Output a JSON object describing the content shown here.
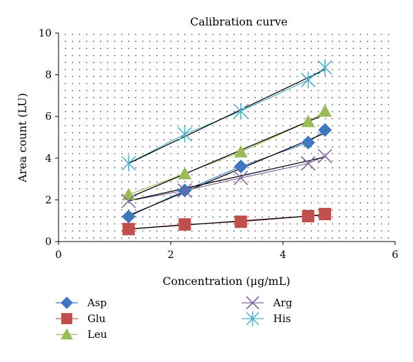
{
  "chart_data": {
    "type": "scatter",
    "title": "Calibration curve",
    "xlabel": "Concentration (μg/mL)",
    "ylabel": "Area count (LU)",
    "xlim": [
      0,
      6
    ],
    "ylim": [
      0,
      10
    ],
    "xticks": [
      0,
      2,
      4,
      6
    ],
    "yticks": [
      0,
      2,
      4,
      6,
      8,
      10
    ],
    "grid": true,
    "legend_position": "bottom",
    "series": [
      {
        "name": "Asp",
        "marker": "diamond",
        "color": "#3f78bf",
        "x": [
          1.25,
          2.25,
          3.25,
          4.45,
          4.75
        ],
        "y": [
          1.2,
          2.45,
          3.6,
          4.75,
          5.35
        ],
        "fit_x": [
          1.25,
          4.75
        ],
        "fit_y": [
          1.25,
          5.2
        ]
      },
      {
        "name": "Glu",
        "marker": "square",
        "color": "#c0504d",
        "x": [
          1.25,
          2.25,
          3.25,
          4.45,
          4.75
        ],
        "y": [
          0.6,
          0.82,
          0.95,
          1.22,
          1.32
        ],
        "fit_x": [
          1.25,
          4.75
        ],
        "fit_y": [
          0.6,
          1.28
        ]
      },
      {
        "name": "Leu",
        "marker": "triangle",
        "color": "#9bbb59",
        "x": [
          1.25,
          2.25,
          3.25,
          4.45,
          4.75
        ],
        "y": [
          2.25,
          3.25,
          4.3,
          5.75,
          6.25
        ],
        "fit_x": [
          1.25,
          4.75
        ],
        "fit_y": [
          2.1,
          6.1
        ]
      },
      {
        "name": "Arg",
        "marker": "x",
        "color": "#8064a2",
        "x": [
          1.25,
          2.25,
          3.25,
          4.45,
          4.75
        ],
        "y": [
          1.95,
          2.45,
          3.05,
          3.75,
          4.1
        ],
        "fit_x": [
          1.25,
          4.75
        ],
        "fit_y": [
          1.95,
          4.05
        ]
      },
      {
        "name": "His",
        "marker": "asterisk",
        "color": "#4bacc6",
        "x": [
          1.25,
          2.25,
          3.25,
          4.45,
          4.75
        ],
        "y": [
          3.75,
          5.15,
          6.25,
          7.75,
          8.35
        ],
        "fit_x": [
          1.25,
          4.75
        ],
        "fit_y": [
          3.75,
          8.25
        ]
      }
    ],
    "legend_layout": [
      [
        "Asp",
        "Arg"
      ],
      [
        "Glu",
        "His"
      ],
      [
        "Leu"
      ]
    ]
  }
}
